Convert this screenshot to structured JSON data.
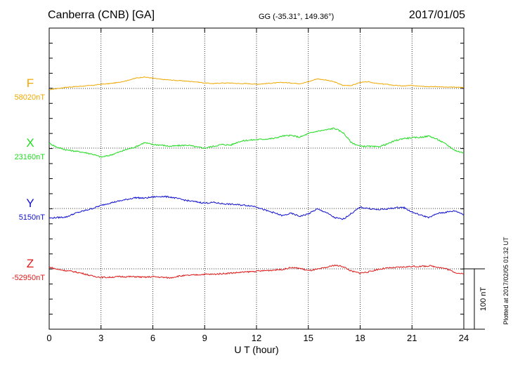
{
  "header": {
    "station": "Canberra (CNB)  [GA]",
    "coords": "GG (-35.31°, 149.36°)",
    "date": "2017/01/05"
  },
  "side_note": "Plotted at 2017/02/05 01:32 UT",
  "scale_label": "100 nT",
  "chart_data": {
    "type": "line",
    "title": "Canberra (CNB)  [GA]",
    "xlabel": "U T (hour)",
    "ylabel": "",
    "xlim": [
      0,
      24
    ],
    "x_ticks": [
      0,
      3,
      6,
      9,
      12,
      15,
      18,
      21,
      24
    ],
    "x_tick_labels": [
      "0",
      "3",
      "6",
      "9",
      "12",
      "15",
      "18",
      "21",
      "24"
    ],
    "grid": true,
    "scale_bar_nT": 100,
    "x": [
      0,
      0.5,
      1,
      1.5,
      2,
      2.5,
      3,
      3.5,
      4,
      4.5,
      5,
      5.5,
      6,
      6.5,
      7,
      7.5,
      8,
      8.5,
      9,
      9.5,
      10,
      10.5,
      11,
      11.5,
      12,
      12.5,
      13,
      13.5,
      14,
      14.5,
      15,
      15.5,
      16,
      16.5,
      17,
      17.5,
      18,
      18.5,
      19,
      19.5,
      20,
      20.5,
      21,
      21.5,
      22,
      22.5,
      23,
      23.5,
      24
    ],
    "series": [
      {
        "name": "F",
        "unit_label": "58020nT",
        "baseline_nT": 58020,
        "color": "#f0a800",
        "values": [
          -2,
          0,
          2,
          3,
          4,
          5,
          7,
          8,
          10,
          13,
          17,
          19,
          17,
          15,
          14,
          13,
          12,
          11,
          9,
          8,
          9,
          9,
          8,
          8,
          7,
          8,
          9,
          10,
          9,
          8,
          11,
          16,
          14,
          11,
          5,
          5,
          10,
          11,
          8,
          7,
          5,
          4,
          5,
          4,
          3,
          3,
          2,
          2,
          2
        ]
      },
      {
        "name": "X",
        "unit_label": "23160nT",
        "baseline_nT": 23160,
        "color": "#1edc1e",
        "values": [
          8,
          1,
          -3,
          -5,
          -7,
          -10,
          -15,
          -12,
          -7,
          -2,
          2,
          9,
          6,
          5,
          3,
          4,
          5,
          2,
          0,
          3,
          6,
          5,
          11,
          13,
          14,
          15,
          16,
          20,
          21,
          18,
          24,
          28,
          30,
          33,
          26,
          9,
          3,
          3,
          2,
          6,
          12,
          16,
          17,
          18,
          20,
          14,
          6,
          -4,
          -8
        ]
      },
      {
        "name": "Y",
        "unit_label": "5150nT",
        "baseline_nT": 5150,
        "color": "#1010d0",
        "values": [
          -16,
          -15,
          -14,
          -8,
          -4,
          0,
          5,
          9,
          12,
          15,
          18,
          17,
          19,
          20,
          19,
          16,
          13,
          11,
          9,
          10,
          8,
          7,
          6,
          5,
          3,
          -3,
          -7,
          -12,
          -8,
          -13,
          -9,
          -1,
          -6,
          -15,
          -18,
          -8,
          2,
          0,
          -2,
          -1,
          1,
          2,
          -6,
          -11,
          -15,
          -8,
          -6,
          -4,
          -10
        ]
      },
      {
        "name": "Z",
        "unit_label": "-52950nT",
        "baseline_nT": -52950,
        "color": "#e01818",
        "values": [
          3,
          -1,
          -3,
          -5,
          -8,
          -12,
          -14,
          -14,
          -13,
          -13,
          -13,
          -14,
          -13,
          -14,
          -15,
          -12,
          -11,
          -10,
          -9,
          -9,
          -8,
          -7,
          -6,
          -5,
          -4,
          -3,
          -2,
          -1,
          2,
          1,
          -3,
          -1,
          2,
          6,
          4,
          -4,
          -7,
          -5,
          -1,
          1,
          2,
          3,
          4,
          4,
          5,
          3,
          0,
          -6,
          -9
        ]
      }
    ]
  }
}
